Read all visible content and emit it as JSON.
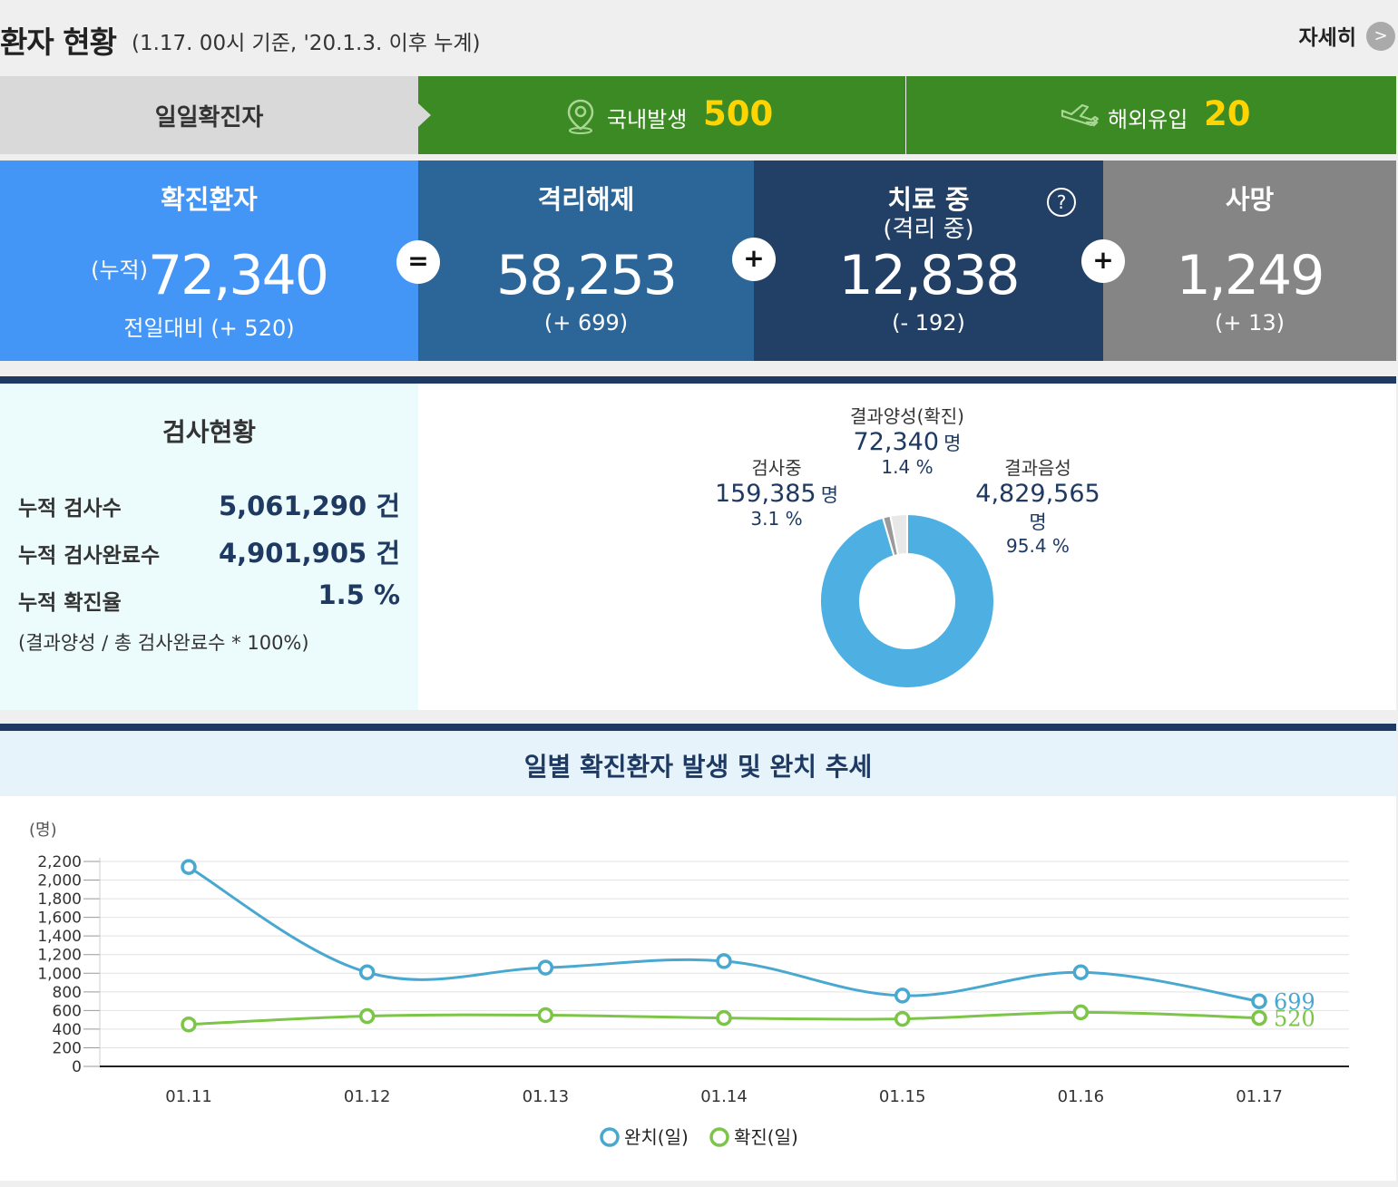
{
  "header": {
    "title": "환자 현황",
    "subtitle": "(1.17. 00시 기준, '20.1.3. 이후 누계)",
    "detail_label": "자세히",
    "detail_icon": ">"
  },
  "daily": {
    "label": "일일확진자",
    "domestic_label": "국내발생",
    "domestic_value": "500",
    "overseas_label": "해외유입",
    "overseas_value": "20"
  },
  "stats": {
    "confirmed": {
      "title": "확진환자",
      "prefix": "(누적)",
      "value": "72,340",
      "diff": "전일대비 (+ 520)",
      "color": "#4395f6"
    },
    "released": {
      "title": "격리해제",
      "value": "58,253",
      "diff": "(+ 699)",
      "color": "#2c6598"
    },
    "treating": {
      "title": "치료 중",
      "sub": "(격리 중)",
      "value": "12,838",
      "diff": "(- 192)",
      "color": "#223f66",
      "help_icon": "?"
    },
    "deaths": {
      "title": "사망",
      "value": "1,249",
      "diff": "(+ 13)",
      "color": "#858585"
    },
    "ops": {
      "eq": "=",
      "plus": "+"
    }
  },
  "testing": {
    "title": "검사현황",
    "rows": [
      {
        "label": "누적 검사수",
        "value": "5,061,290 건"
      },
      {
        "label": "누적 검사완료수",
        "value": "4,901,905 건"
      },
      {
        "label": "누적 확진율",
        "value": "1.5 %"
      }
    ],
    "note": "(결과양성 / 총 검사완료수 * 100%)",
    "pie": {
      "positive": {
        "name": "결과양성(확진)",
        "value": "72,340",
        "unit": "명",
        "pct": "1.4 %"
      },
      "testing": {
        "name": "검사중",
        "value": "159,385",
        "unit": "명",
        "pct": "3.1 %"
      },
      "negative": {
        "name": "결과음성",
        "value": "4,829,565",
        "unit": "명",
        "pct": "95.4 %"
      },
      "colors": {
        "negative": "#4eb0e2",
        "testing": "#e8e8e8",
        "positive": "#9a9a9a"
      }
    }
  },
  "trend": {
    "title": "일별 확진환자 발생 및 완치 추세",
    "unit_label": "(명)",
    "legend": [
      {
        "name": "완치(일)",
        "color": "#49a8d0"
      },
      {
        "name": "확진(일)",
        "color": "#7cc548"
      }
    ]
  },
  "chart_data": {
    "type": "line",
    "title": "일별 확진환자 발생 및 완치 추세",
    "ylabel": "(명)",
    "ylim": [
      0,
      2200
    ],
    "yticks": [
      0,
      200,
      400,
      600,
      800,
      1000,
      1200,
      1400,
      1600,
      1800,
      2000,
      2200
    ],
    "categories": [
      "01.11",
      "01.12",
      "01.13",
      "01.14",
      "01.15",
      "01.16",
      "01.17"
    ],
    "series": [
      {
        "name": "완치(일)",
        "color": "#49a8d0",
        "values": [
          2140,
          1010,
          1060,
          1130,
          760,
          1010,
          699
        ]
      },
      {
        "name": "확진(일)",
        "color": "#7cc548",
        "values": [
          450,
          540,
          550,
          520,
          510,
          580,
          520
        ]
      }
    ],
    "end_labels": [
      "699",
      "520"
    ],
    "grid": true,
    "legend": "bottom"
  }
}
